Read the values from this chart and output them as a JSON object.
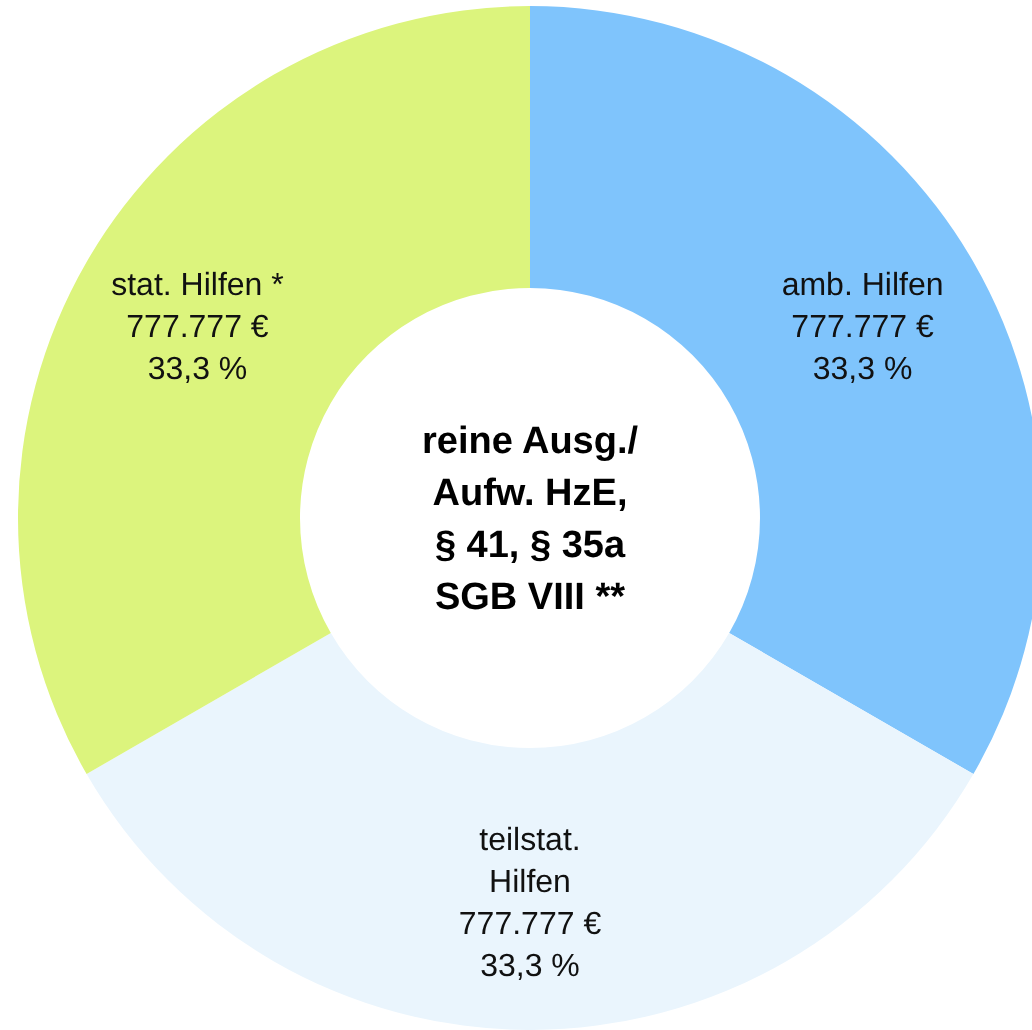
{
  "chart_data": {
    "type": "donut",
    "title": "reine Ausg./\nAufw. HzE,\n§ 41, § 35a\nSGB VIII **",
    "categories": [
      "amb. Hilfen",
      "teilstat.\nHilfen",
      "stat. Hilfen *"
    ],
    "values": [
      777777,
      777777,
      777777
    ],
    "value_labels": [
      "777.777 €\n33,3 %",
      "777.777 €\n33,3 %",
      "777.777 €\n33,3 %"
    ],
    "colors": [
      "#7fc4fc",
      "#eaf5fd",
      "#dcf47d"
    ]
  }
}
